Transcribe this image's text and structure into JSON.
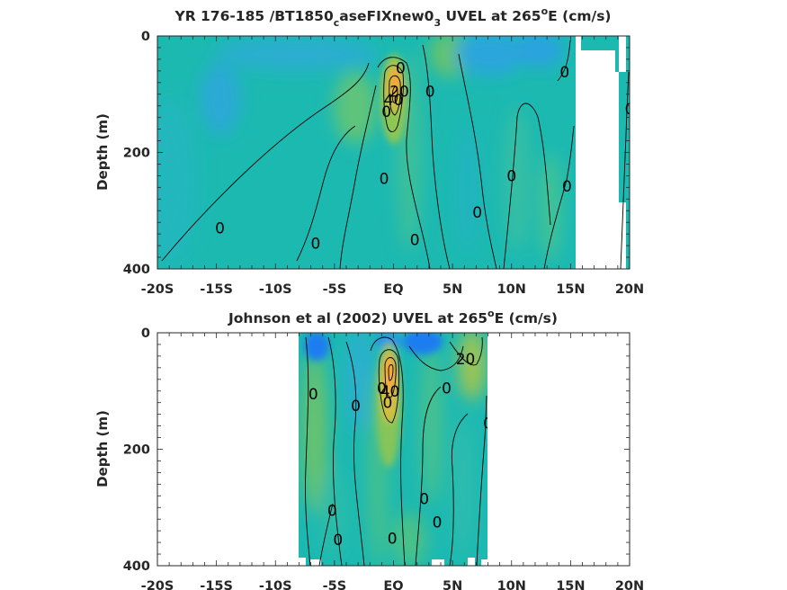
{
  "figure": {
    "colors": {
      "background": "#1cb9b1",
      "strong_negative": "#1f7df0",
      "weak_negative": "#27a7d8",
      "weak_positive": "#6cc26a",
      "moderate_positive": "#b8c445",
      "strong_positive": "#f3a63c",
      "max_positive": "#f7be3e",
      "contour_line": "#000000",
      "axis": "#262626"
    }
  },
  "chart_data": [
    {
      "type": "contour",
      "title": {
        "pre": "YR 176-185 /BT1850",
        "sub1": "c",
        "mid": "aseFIXnew0",
        "sub2": "3",
        "post": " UVEL at 265",
        "sup": "o",
        "post2": "E (cm/s)"
      },
      "ylabel": "Depth (m)",
      "xlabel": "",
      "x_ticks": [
        "-20S",
        "-15S",
        "-10S",
        "-5S",
        "EQ",
        "5N",
        "10N",
        "15N",
        "20N"
      ],
      "y_ticks": [
        "0",
        "200",
        "400"
      ],
      "xlim": [
        -20,
        20
      ],
      "ylim": [
        0,
        400
      ],
      "y_reversed": true,
      "data_extent_lat": [
        -20,
        20
      ],
      "contour_labels": [
        {
          "text": "0",
          "lat": 0.6,
          "depth": 55
        },
        {
          "text": "40",
          "lat": 0.0,
          "depth": 110
        },
        {
          "text": "20",
          "lat": 0.5,
          "depth": 95
        },
        {
          "text": "0",
          "lat": -0.6,
          "depth": 130
        },
        {
          "text": "0",
          "lat": 3.1,
          "depth": 95
        },
        {
          "text": "0",
          "lat": 14.5,
          "depth": 62
        },
        {
          "text": "0",
          "lat": 20.0,
          "depth": 125
        },
        {
          "text": "0",
          "lat": -0.8,
          "depth": 245
        },
        {
          "text": "0",
          "lat": 10.0,
          "depth": 240
        },
        {
          "text": "0",
          "lat": 14.7,
          "depth": 258
        },
        {
          "text": "0",
          "lat": 7.1,
          "depth": 303
        },
        {
          "text": "0",
          "lat": -14.7,
          "depth": 330
        },
        {
          "text": "0",
          "lat": -6.6,
          "depth": 356
        },
        {
          "text": "0",
          "lat": 1.8,
          "depth": 350
        }
      ],
      "features": {
        "undercurrent_core": {
          "lat": 0.2,
          "depth": 85,
          "max": 45
        },
        "surface_westward_south": {
          "lat": -13,
          "depth": 100
        },
        "surface_westward_north": {
          "lat": 11,
          "depth": 30
        }
      }
    },
    {
      "type": "contour",
      "title": {
        "pre": "Johnson et al (2002) UVEL at 265",
        "sup": "o",
        "post": "E (cm/s)"
      },
      "ylabel": "Depth (m)",
      "xlabel": "",
      "x_ticks": [
        "-20S",
        "-15S",
        "-10S",
        "-5S",
        "EQ",
        "5N",
        "10N",
        "15N",
        "20N"
      ],
      "y_ticks": [
        "0",
        "200",
        "400"
      ],
      "xlim": [
        -20,
        20
      ],
      "ylim": [
        0,
        400
      ],
      "y_reversed": true,
      "data_extent_lat": [
        -8,
        8
      ],
      "contour_labels": [
        {
          "text": "0",
          "lat": -6.8,
          "depth": 105
        },
        {
          "text": "0",
          "lat": -3.2,
          "depth": 125
        },
        {
          "text": "0",
          "lat": -1.0,
          "depth": 95
        },
        {
          "text": "40",
          "lat": -0.3,
          "depth": 100
        },
        {
          "text": "0",
          "lat": -0.5,
          "depth": 120
        },
        {
          "text": "20",
          "lat": 6.1,
          "depth": 45
        },
        {
          "text": "0",
          "lat": 4.5,
          "depth": 95
        },
        {
          "text": "0",
          "lat": 8.0,
          "depth": 155
        },
        {
          "text": "0",
          "lat": 2.6,
          "depth": 285
        },
        {
          "text": "0",
          "lat": 3.7,
          "depth": 325
        },
        {
          "text": "0",
          "lat": -5.2,
          "depth": 305
        },
        {
          "text": "0",
          "lat": -4.7,
          "depth": 355
        },
        {
          "text": "0",
          "lat": -0.1,
          "depth": 353
        }
      ],
      "features": {
        "undercurrent_core": {
          "lat": 0.0,
          "depth": 70,
          "max": 50
        }
      }
    }
  ]
}
